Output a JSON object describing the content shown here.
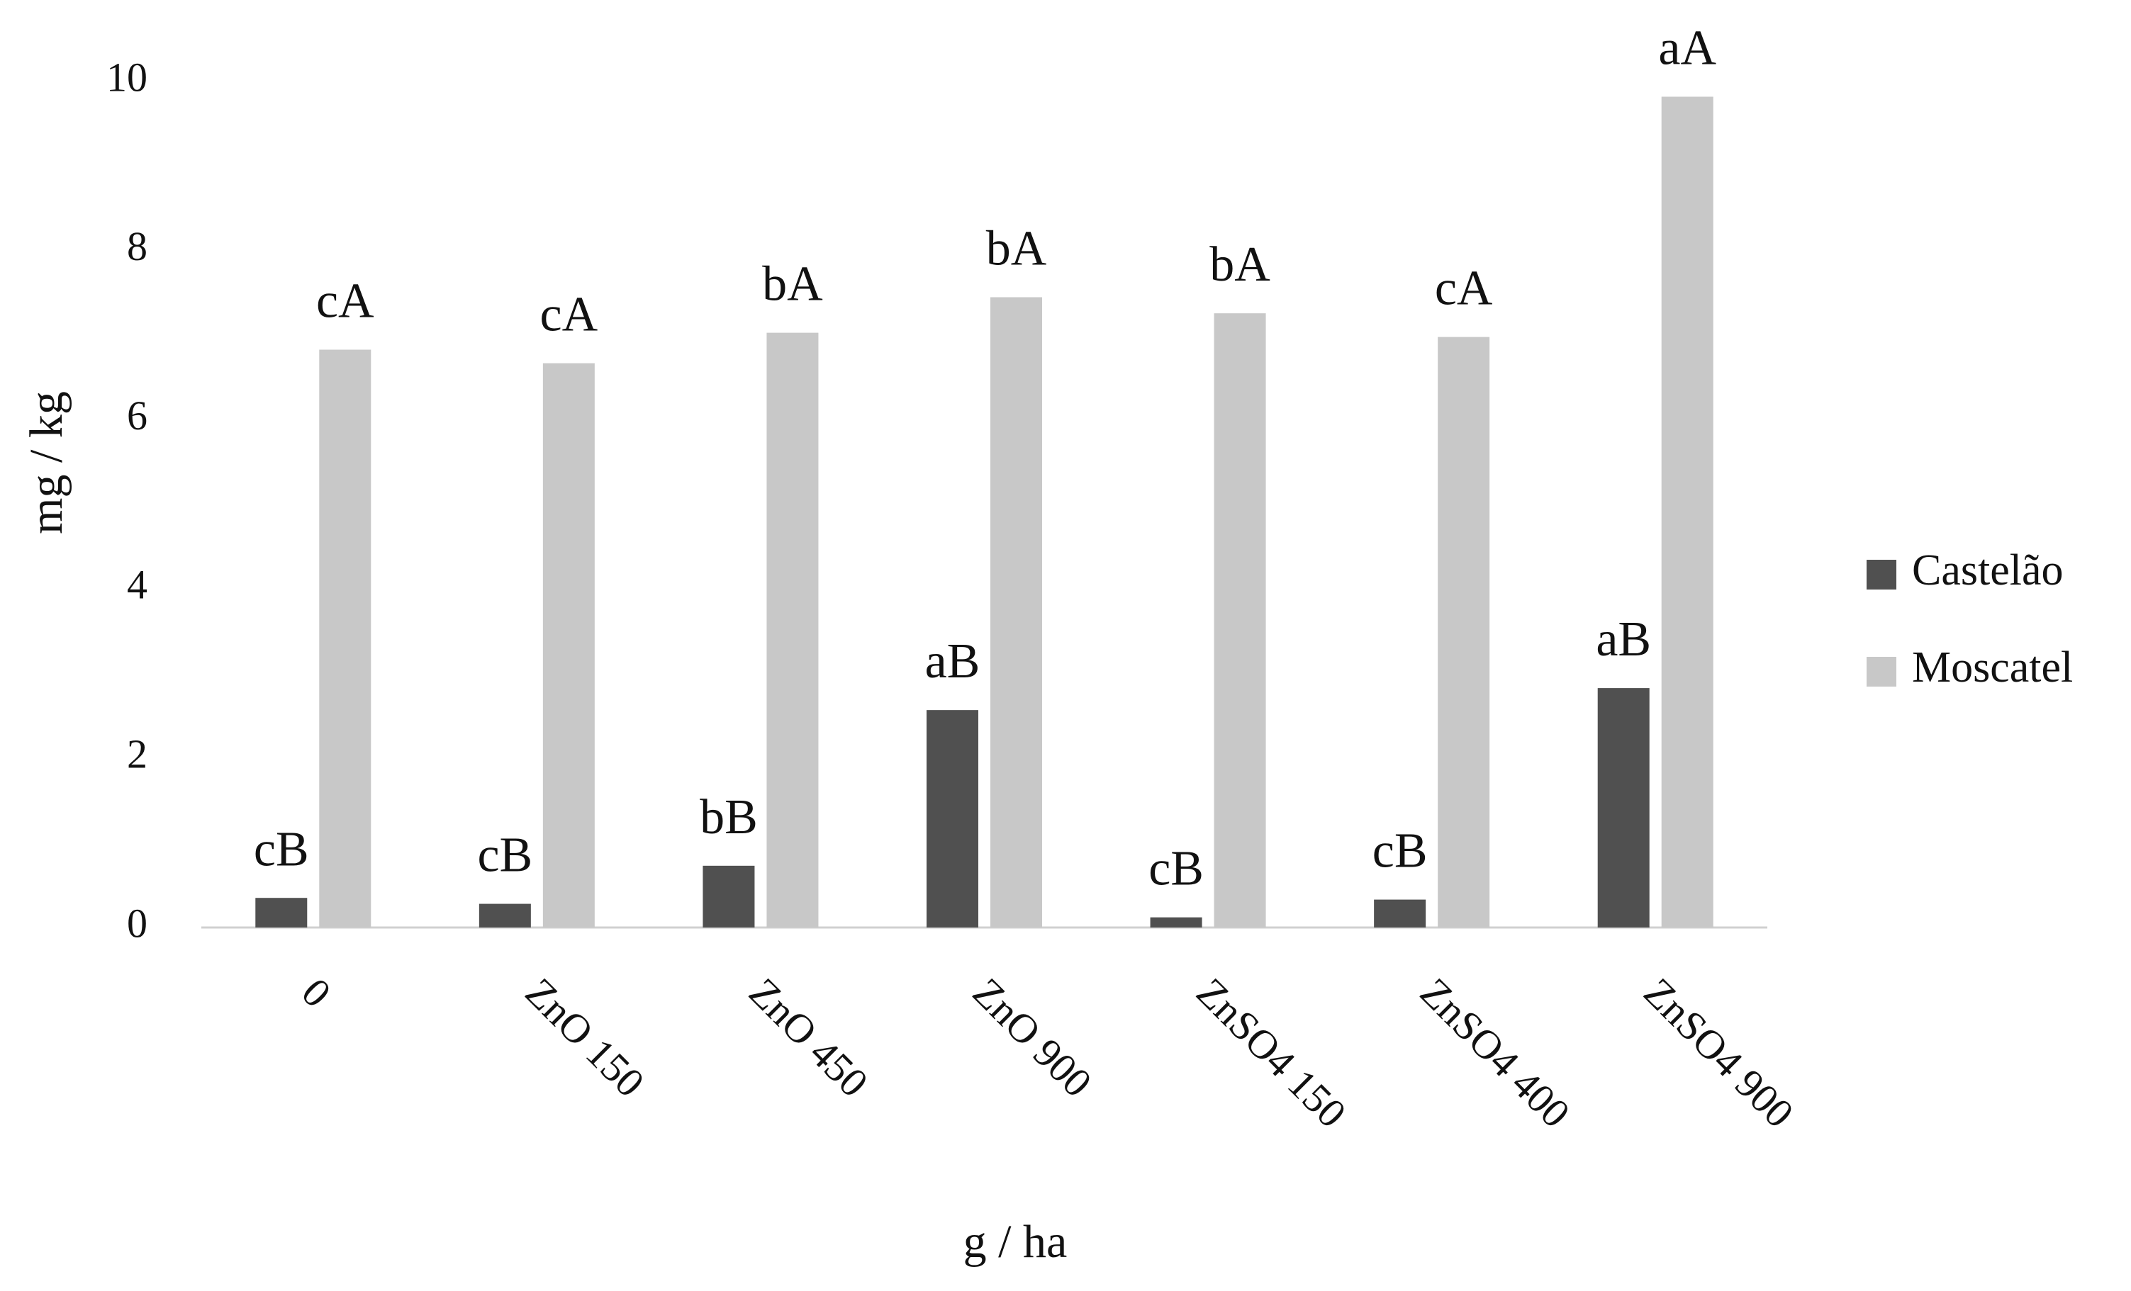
{
  "chart_data": {
    "type": "bar",
    "x_label": "g / ha",
    "y_label": "mg / kg",
    "categories": [
      "0",
      "ZnO 150",
      "ZnO 450",
      "ZnO 900",
      "ZnSO4 150",
      "ZnSO4 400",
      "ZnSO4 900"
    ],
    "series": [
      {
        "name": "Castelão",
        "color": "#505050",
        "values": [
          0.35,
          0.28,
          0.73,
          2.57,
          0.12,
          0.33,
          2.83
        ],
        "letters": [
          "cB",
          "cB",
          "bB",
          "aB",
          "cB",
          "cB",
          "aB"
        ]
      },
      {
        "name": "Moscatel",
        "color": "#c8c8c8",
        "values": [
          6.83,
          6.67,
          7.03,
          7.45,
          7.26,
          6.98,
          9.82
        ],
        "letters": [
          "cA",
          "cA",
          "bA",
          "bA",
          "bA",
          "cA",
          "aA"
        ]
      }
    ],
    "ylim": [
      0,
      10
    ],
    "yticks": [
      0,
      2,
      4,
      6,
      8,
      10
    ],
    "grid": false,
    "legend": "right"
  }
}
